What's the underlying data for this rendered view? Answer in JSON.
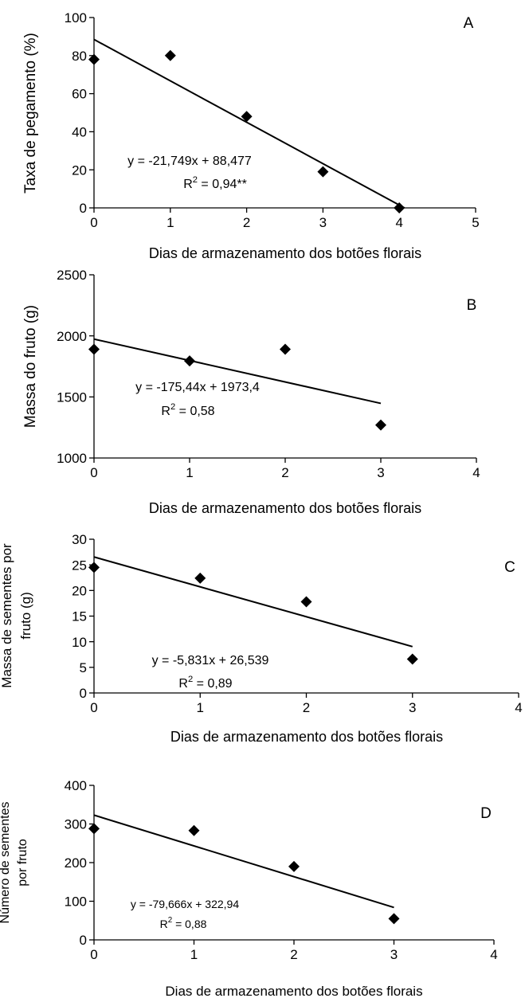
{
  "chart_data": [
    {
      "panel_label": "A",
      "type": "scatter",
      "xlabel": "Dias de armazenamento dos botões florais",
      "ylabel": [
        "Taxa de pegamento (%)"
      ],
      "xlim": [
        0,
        5
      ],
      "ylim": [
        0,
        100
      ],
      "xticks": [
        0,
        1,
        2,
        3,
        4,
        5
      ],
      "yticks": [
        0,
        20,
        40,
        60,
        80,
        100
      ],
      "points": [
        [
          0,
          78
        ],
        [
          1,
          80
        ],
        [
          2,
          48
        ],
        [
          3,
          19
        ],
        [
          4,
          0
        ]
      ],
      "trendline": {
        "slope": -21.749,
        "intercept": 88.477,
        "x_range": [
          0,
          4.068
        ]
      },
      "equation": "y = -21,749x + 88,477",
      "r2": {
        "prefix": "R",
        "sup": "2",
        "value": " = 0,94**"
      }
    },
    {
      "panel_label": "B",
      "type": "scatter",
      "xlabel": "Dias de armazenamento dos botões  florais",
      "ylabel": [
        "Massa do fruto (g)"
      ],
      "xlim": [
        0,
        4
      ],
      "ylim": [
        1000,
        2500
      ],
      "xticks": [
        0,
        1,
        2,
        3,
        4
      ],
      "yticks": [
        1000,
        1500,
        2000,
        2500
      ],
      "points": [
        [
          0,
          1890
        ],
        [
          1,
          1795
        ],
        [
          2,
          1890
        ],
        [
          3,
          1270
        ]
      ],
      "trendline": {
        "slope": -175.44,
        "intercept": 1973.4,
        "x_range": [
          0,
          3
        ]
      },
      "equation": "y = -175,44x + 1973,4",
      "r2": {
        "prefix": "R",
        "sup": "2",
        "value": " = 0,58"
      }
    },
    {
      "panel_label": "C",
      "type": "scatter",
      "xlabel": "Dias de armazenamento dos botões florais",
      "ylabel": [
        "Massa de sementes por",
        "fruto (g)"
      ],
      "xlim": [
        0,
        4
      ],
      "ylim": [
        0,
        30
      ],
      "xticks": [
        0,
        1,
        2,
        3,
        4
      ],
      "yticks": [
        0,
        5,
        10,
        15,
        20,
        25,
        30
      ],
      "points": [
        [
          0,
          24.5
        ],
        [
          1,
          22.4
        ],
        [
          2,
          17.8
        ],
        [
          3,
          6.6
        ]
      ],
      "trendline": {
        "slope": -5.831,
        "intercept": 26.539,
        "x_range": [
          0,
          3
        ]
      },
      "equation": "y = -5,831x + 26,539",
      "r2": {
        "prefix": "R",
        "sup": "2",
        "value": " = 0,89"
      }
    },
    {
      "panel_label": "D",
      "type": "scatter",
      "xlabel": "Dias de armazenamento dos botões florais",
      "ylabel": [
        "Número de sementes",
        "por fruto"
      ],
      "xlim": [
        0,
        4
      ],
      "ylim": [
        0,
        400
      ],
      "xticks": [
        0,
        1,
        2,
        3,
        4
      ],
      "yticks": [
        0,
        100,
        200,
        300,
        400
      ],
      "points": [
        [
          0,
          288
        ],
        [
          1,
          283
        ],
        [
          2,
          190
        ],
        [
          3,
          55
        ]
      ],
      "trendline": {
        "slope": -79.666,
        "intercept": 322.94,
        "x_range": [
          0,
          3
        ]
      },
      "equation": "y = -79,666x + 322,94",
      "r2": {
        "prefix": "R",
        "sup": "2",
        "value": " = 0,88"
      }
    }
  ]
}
